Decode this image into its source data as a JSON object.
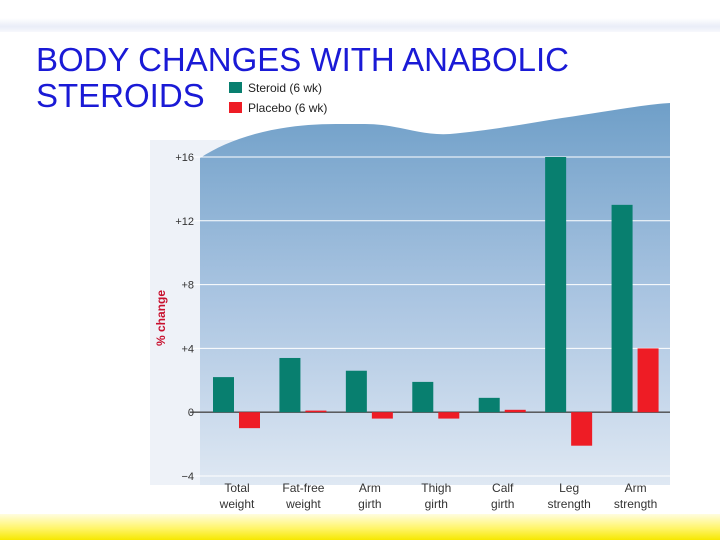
{
  "slide": {
    "title_line1": "BODY CHANGES WITH ANABOLIC",
    "title_line2": "STEROIDS"
  },
  "colors": {
    "title": "#1a1ad6",
    "steroid": "#087f6f",
    "placebo": "#ee1c25",
    "axis_title": "#c8102e"
  },
  "chart_data": {
    "type": "bar",
    "title": "",
    "xlabel": "",
    "ylabel": "% change",
    "ylim": [
      -4,
      16
    ],
    "yticks": [
      16,
      12,
      8,
      4,
      0,
      -4
    ],
    "ytick_labels": [
      "+16",
      "+12",
      "+8",
      "+4",
      "0",
      "−4"
    ],
    "legend_position": "top-left",
    "categories": [
      [
        "Total",
        "weight"
      ],
      [
        "Fat-free",
        "weight"
      ],
      [
        "Arm",
        "girth"
      ],
      [
        "Thigh",
        "girth"
      ],
      [
        "Calf",
        "girth"
      ],
      [
        "Leg",
        "strength"
      ],
      [
        "Arm",
        "strength"
      ]
    ],
    "series": [
      {
        "name": "Steroid (6 wk)",
        "values": [
          2.2,
          3.4,
          2.6,
          1.9,
          0.9,
          16.0,
          13.0
        ]
      },
      {
        "name": "Placebo (6 wk)",
        "values": [
          -1.0,
          0.1,
          -0.4,
          -0.4,
          0.15,
          -2.1,
          4.0
        ]
      }
    ]
  }
}
